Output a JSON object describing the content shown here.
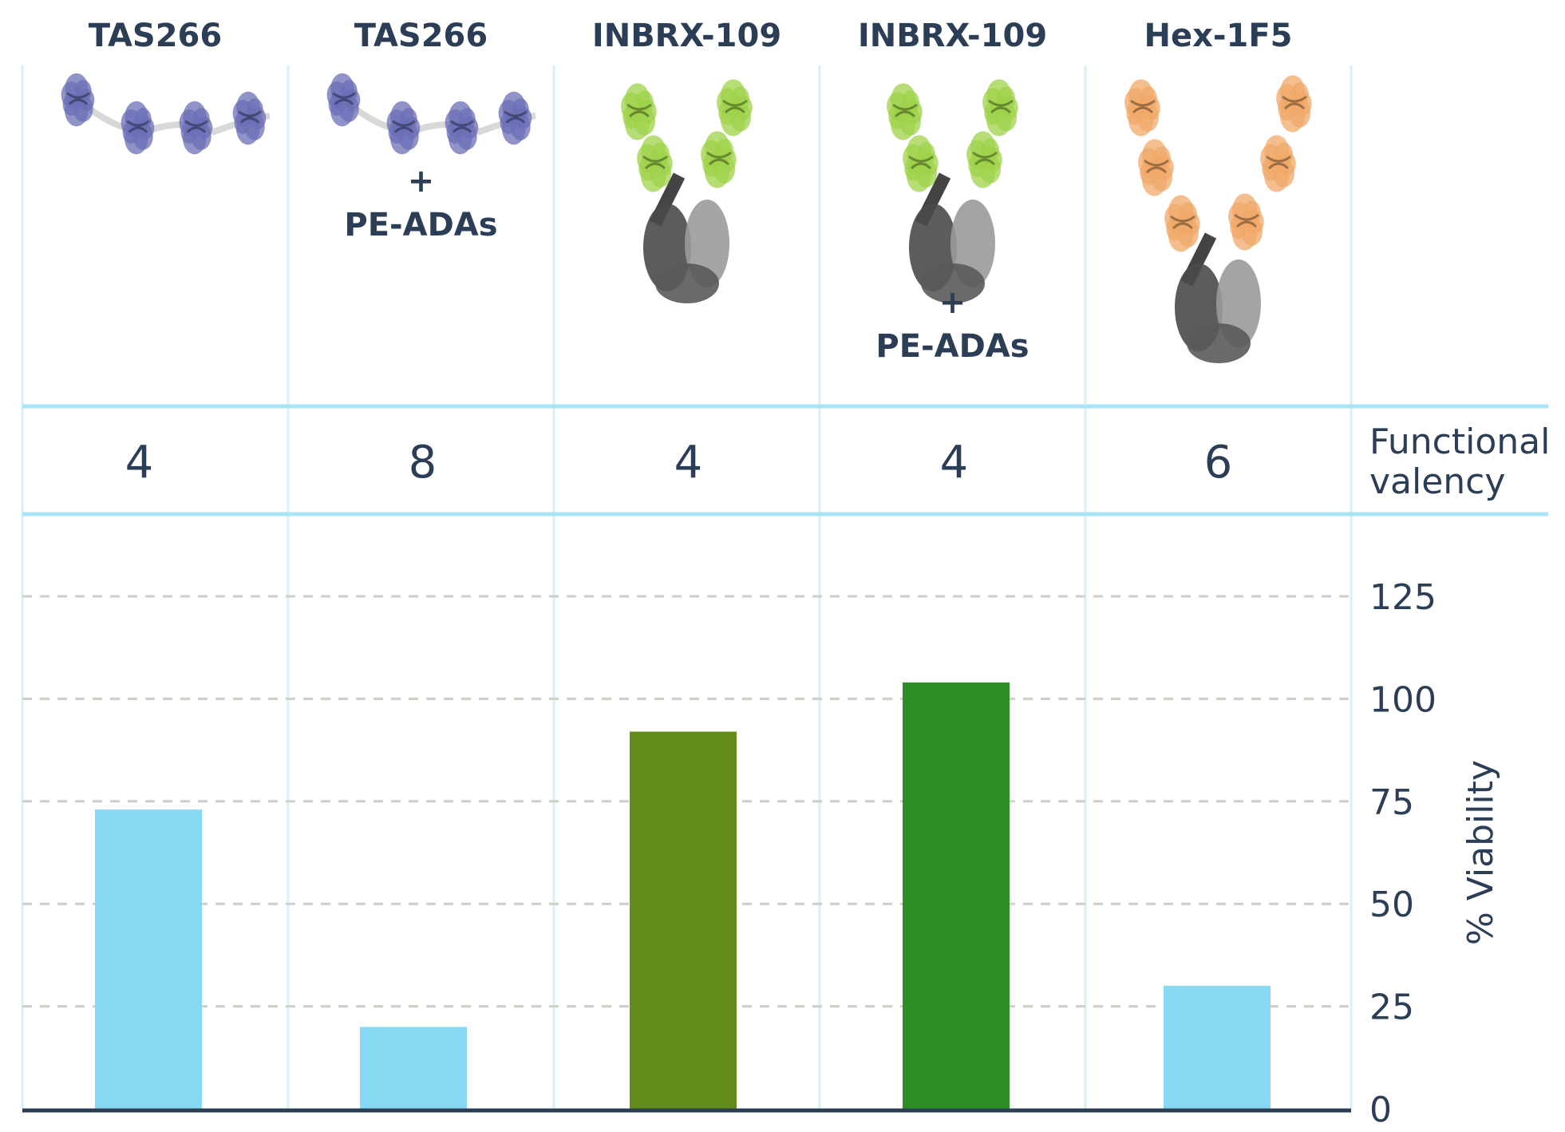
{
  "chart_data": {
    "type": "bar",
    "categories": [
      "TAS266",
      "TAS266",
      "INBRX-109",
      "INBRX-109",
      "Hex-1F5"
    ],
    "annotations": [
      "",
      "+ PE-ADAs",
      "",
      "+ PE-ADAs",
      ""
    ],
    "annotation_parts": [
      [
        "",
        ""
      ],
      [
        "+",
        "PE-ADAs"
      ],
      [
        "",
        ""
      ],
      [
        "+",
        "PE-ADAs"
      ],
      [
        "",
        ""
      ]
    ],
    "molecule_types": [
      "tetravalent-nanobody-chain",
      "tetravalent-nanobody-chain",
      "antibody-4-domain",
      "antibody-4-domain",
      "antibody-6-domain"
    ],
    "molecule_colors": [
      "#6b6fb5",
      "#6b6fb5",
      "#9fd14a",
      "#9fd14a",
      "#f0a868"
    ],
    "functional_valency_label": [
      "Functional",
      "valency"
    ],
    "functional_valency": [
      4,
      8,
      4,
      4,
      6
    ],
    "values": [
      73,
      20,
      92,
      104,
      30
    ],
    "bar_colors": [
      "#87d8f3",
      "#87d8f3",
      "#648c1a",
      "#2b8e26",
      "#87d8f3"
    ],
    "ylabel": "% Viability",
    "ylim": [
      0,
      125
    ],
    "yticks": [
      0,
      25,
      50,
      75,
      100,
      125
    ],
    "ytick_labels": [
      "0",
      "25",
      "50",
      "75",
      "100",
      "125"
    ],
    "y_axis_position": "right",
    "grid": "horizontal dashed",
    "colors": {
      "text": "#2c3e56",
      "divider": "#a8e4f5",
      "grid": "#cfcfc8",
      "axis": "#2c3e56"
    }
  }
}
